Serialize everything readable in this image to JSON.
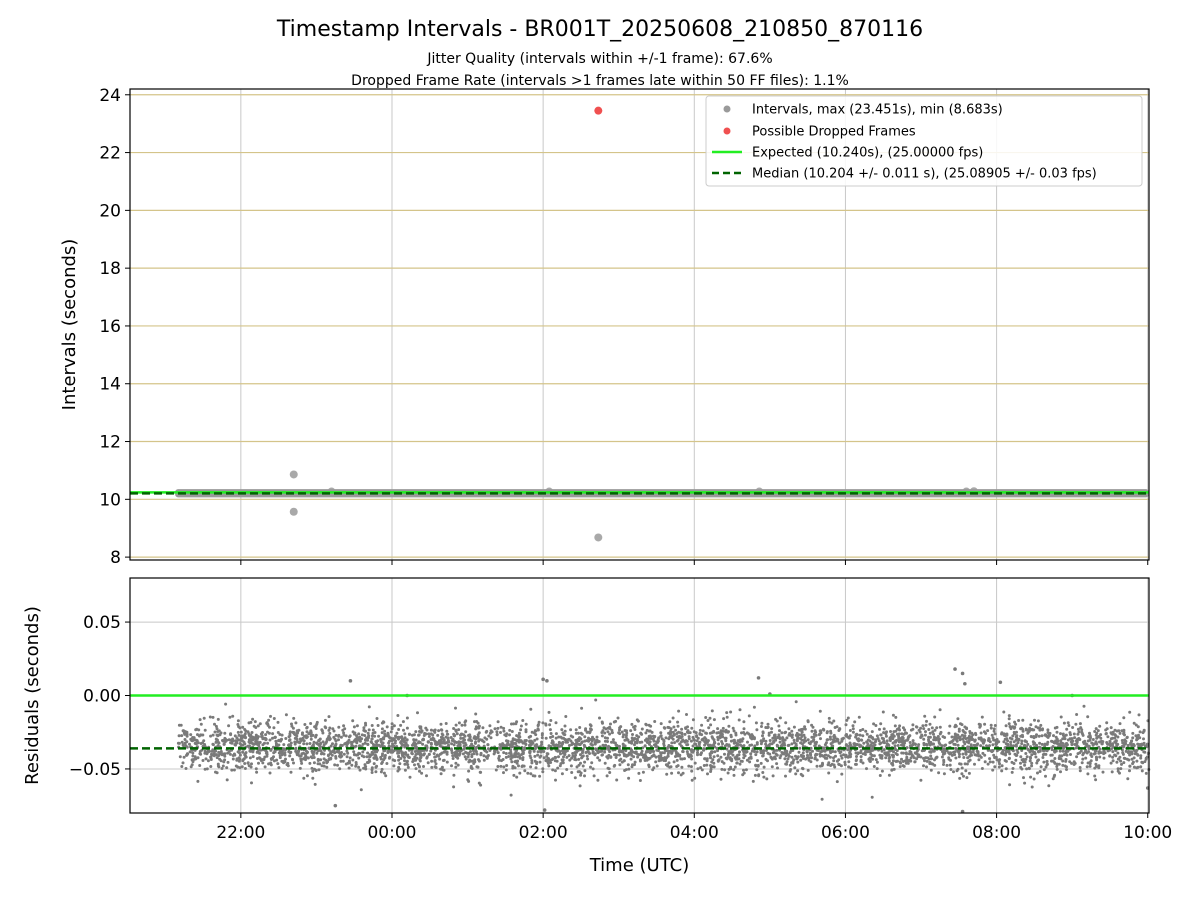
{
  "figure": {
    "title": "Timestamp Intervals - BR001T_20250608_210850_870116",
    "subtitle_1": "Jitter Quality (intervals within +/-1 frame): 67.6%",
    "subtitle_2": "Dropped Frame Rate (intervals >1 frames late within 50 FF files): 1.1%"
  },
  "chart_data": [
    {
      "type": "scatter",
      "ylabel": "Intervals (seconds)",
      "xlim": [
        20.5333,
        34.0167
      ],
      "ylim": [
        7.9,
        24.2
      ],
      "yticks": [
        8,
        10,
        12,
        14,
        16,
        18,
        20,
        22,
        24
      ],
      "xticks": [
        22,
        24,
        26,
        28,
        30,
        32,
        34
      ],
      "grid": true,
      "legend_position": "top-right",
      "legend": [
        "Intervals, max (23.451s), min (8.683s)",
        "Possible Dropped Frames",
        "Expected (10.240s), (25.00000 fps)",
        "Median (10.204 +/- 0.011 s), (25.08905 +/- 0.03 fps)"
      ],
      "colors": {
        "intervals": "#9a9a9a",
        "dropped": "#f05050",
        "expected": "#22ee22",
        "median": "#006400",
        "hgrid": "#d4c48a"
      },
      "expected_value": 10.24,
      "median_value": 10.204,
      "interval_band": {
        "x_start": 21.17,
        "x_end": 34.0167,
        "y_low": 10.17,
        "y_high": 10.25
      },
      "outliers": [
        {
          "x": 22.7,
          "y": 10.86
        },
        {
          "x": 22.7,
          "y": 9.57
        },
        {
          "x": 26.73,
          "y": 8.68
        },
        {
          "x": 23.2,
          "y": 10.27
        },
        {
          "x": 26.08,
          "y": 10.27
        },
        {
          "x": 28.86,
          "y": 10.27
        },
        {
          "x": 31.6,
          "y": 10.27
        },
        {
          "x": 31.7,
          "y": 10.28
        }
      ],
      "dropped": [
        {
          "x": 26.73,
          "y": 23.45
        }
      ]
    },
    {
      "type": "scatter",
      "xlabel": "Time (UTC)",
      "ylabel": "Residuals (seconds)",
      "xlim": [
        20.5333,
        34.0167
      ],
      "ylim": [
        -0.08,
        0.08
      ],
      "yticks": [
        0.05,
        0.0,
        -0.05
      ],
      "ytick_labels": [
        "0.05",
        "0.00",
        "−0.05"
      ],
      "xticks": [
        22,
        24,
        26,
        28,
        30,
        32,
        34
      ],
      "xtick_labels": [
        "22:00",
        "00:00",
        "02:00",
        "04:00",
        "06:00",
        "08:00",
        "10:00"
      ],
      "grid": true,
      "colors": {
        "points": "#7a7a7a",
        "expected": "#22ee22",
        "median": "#006400"
      },
      "expected_value": 0.0,
      "median_value": -0.036,
      "residual_cloud": {
        "x_start": 21.17,
        "x_end": 34.0167,
        "center": -0.035,
        "spread": 0.0085,
        "count": 4400
      },
      "notable_points": [
        {
          "x": 23.45,
          "y": 0.01
        },
        {
          "x": 26.0,
          "y": 0.011
        },
        {
          "x": 26.05,
          "y": 0.01
        },
        {
          "x": 28.85,
          "y": 0.012
        },
        {
          "x": 31.45,
          "y": 0.018
        },
        {
          "x": 31.55,
          "y": 0.015
        },
        {
          "x": 31.58,
          "y": 0.008
        },
        {
          "x": 32.05,
          "y": 0.009
        },
        {
          "x": 29.0,
          "y": 0.001
        },
        {
          "x": 24.2,
          "y": 0.0
        },
        {
          "x": 33.0,
          "y": 0.0
        },
        {
          "x": 23.25,
          "y": -0.075
        },
        {
          "x": 26.02,
          "y": -0.078
        },
        {
          "x": 31.55,
          "y": -0.079
        },
        {
          "x": 34.0,
          "y": -0.063
        }
      ]
    }
  ]
}
